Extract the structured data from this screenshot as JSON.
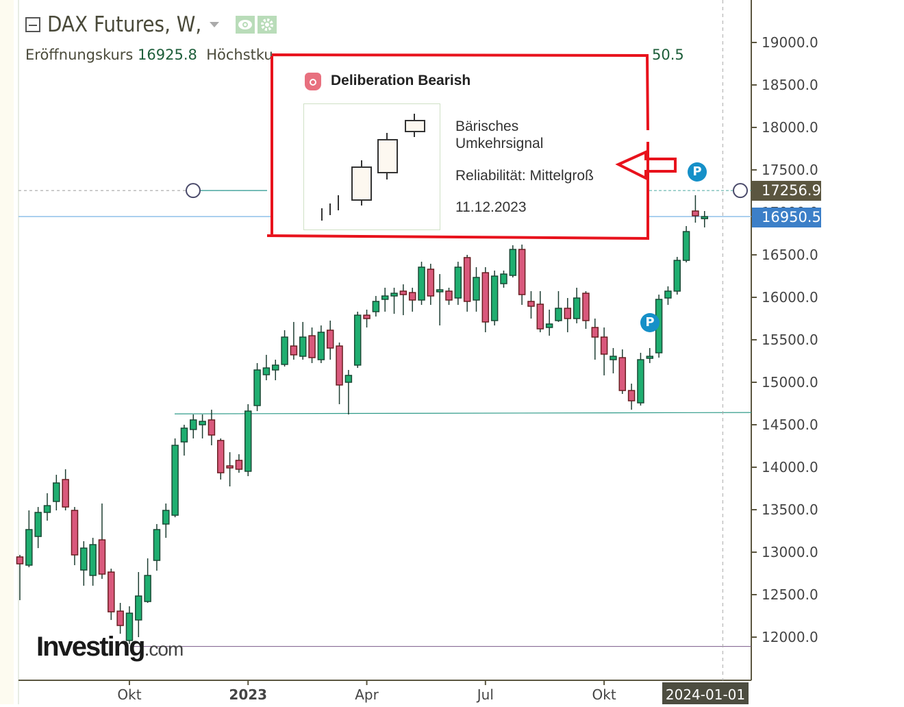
{
  "header": {
    "title": "DAX Futures, W,",
    "icons": [
      "collapse-icon",
      "caret-down-icon",
      "eye-icon",
      "gear-icon"
    ]
  },
  "legend": {
    "open_label": "Eröffnungskurs",
    "open_value": "16925.8",
    "high_label": "Höchstku",
    "tail_fragment": "50.5"
  },
  "tooltip": {
    "title": "Deliberation Bearish",
    "line1": "Bärisches",
    "line2": "Umkehrsignal",
    "reliability": "Reliabilität: Mittelgroß",
    "date": "11.12.2023",
    "icon": "bear-icon"
  },
  "markers": [
    {
      "label": "P"
    },
    {
      "label": "P"
    }
  ],
  "badges": {
    "line_price": "17256.9",
    "last_price": "16950.5",
    "crosshair_date": "2024-01-01"
  },
  "logo": {
    "main": "Investing",
    "suffix": ".com"
  },
  "colors": {
    "up": "#1fae70",
    "down": "#d9597c",
    "up_border": "#1b4a36",
    "down_border": "#6a1f22",
    "wick": "#1d3d31",
    "last_badge": "#3c7fc8",
    "line_badge": "#5b5640",
    "annotation": "#e8121c"
  },
  "chart_data": {
    "type": "candlestick",
    "title": "DAX Futures, W,",
    "interval": "weekly",
    "ylim": [
      11550,
      19450
    ],
    "yticks": [
      "19000.0",
      "18500.0",
      "18000.0",
      "17500.0",
      "17000.0",
      "16500.0",
      "16000.0",
      "15500.0",
      "15000.0",
      "14500.0",
      "14000.0",
      "13500.0",
      "13000.0",
      "12500.0",
      "12000.0"
    ],
    "xticks": [
      {
        "label": "Okt",
        "date": "2022-10-03"
      },
      {
        "label": "2023",
        "date": "2023-01-02",
        "bold": true
      },
      {
        "label": "Apr",
        "date": "2023-04-03"
      },
      {
        "label": "Jul",
        "date": "2023-07-03"
      },
      {
        "label": "Okt",
        "date": "2023-10-02"
      }
    ],
    "hlines": [
      {
        "price": 17256.9,
        "style": "dashed"
      },
      {
        "price": 16950.5,
        "style": "solid-blue"
      },
      {
        "price": 14620,
        "style": "trendline"
      },
      {
        "price": 11890,
        "style": "solid-purple"
      }
    ],
    "crosshair_date": "2024-01-01",
    "markers": [
      {
        "date": "2023-12-04",
        "label": "P"
      },
      {
        "date": "2023-11-13",
        "label": "P"
      }
    ],
    "candles": {
      "fields": [
        "date",
        "open",
        "high",
        "low",
        "close"
      ],
      "rows": [
        [
          "2022-07-11",
          12944,
          12968,
          12435,
          12863
        ],
        [
          "2022-07-18",
          12847,
          13492,
          12823,
          13266
        ],
        [
          "2022-07-25",
          13185,
          13532,
          13048,
          13468
        ],
        [
          "2022-08-01",
          13468,
          13694,
          13371,
          13548
        ],
        [
          "2022-08-08",
          13597,
          13911,
          13492,
          13815
        ],
        [
          "2022-08-15",
          13855,
          13976,
          13492,
          13532
        ],
        [
          "2022-08-22",
          13492,
          13532,
          12847,
          12968
        ],
        [
          "2022-08-29",
          12790,
          13129,
          12605,
          13048
        ],
        [
          "2022-09-05",
          12726,
          13169,
          12605,
          13089
        ],
        [
          "2022-09-12",
          13145,
          13573,
          12686,
          12742
        ],
        [
          "2022-09-19",
          12766,
          12806,
          12202,
          12298
        ],
        [
          "2022-09-26",
          12306,
          12403,
          12040,
          12137
        ],
        [
          "2022-10-03",
          11960,
          12363,
          11919,
          12282
        ],
        [
          "2022-10-10",
          12202,
          12766,
          12000,
          12484
        ],
        [
          "2022-10-17",
          12419,
          12927,
          12403,
          12726
        ],
        [
          "2022-10-24",
          12903,
          13331,
          12782,
          13266
        ],
        [
          "2022-10-31",
          13331,
          13573,
          13169,
          13492
        ],
        [
          "2022-11-07",
          13435,
          14339,
          13411,
          14258
        ],
        [
          "2022-11-14",
          14298,
          14500,
          14137,
          14460
        ],
        [
          "2022-11-21",
          14444,
          14621,
          14339,
          14557
        ],
        [
          "2022-11-28",
          14500,
          14621,
          14339,
          14540
        ],
        [
          "2022-12-05",
          14557,
          14677,
          14258,
          14379
        ],
        [
          "2022-12-12",
          14315,
          14339,
          13855,
          13935
        ],
        [
          "2022-12-19",
          14016,
          14177,
          13774,
          13992
        ],
        [
          "2022-12-26",
          14081,
          14153,
          13935,
          13976
        ],
        [
          "2023-01-02",
          13952,
          14742,
          13895,
          14661
        ],
        [
          "2023-01-09",
          14726,
          15226,
          14661,
          15145
        ],
        [
          "2023-01-16",
          15089,
          15323,
          15024,
          15169
        ],
        [
          "2023-01-23",
          15145,
          15266,
          15024,
          15202
        ],
        [
          "2023-01-30",
          15210,
          15613,
          15185,
          15532
        ],
        [
          "2023-02-06",
          15427,
          15710,
          15266,
          15323
        ],
        [
          "2023-02-13",
          15306,
          15710,
          15266,
          15532
        ],
        [
          "2023-02-20",
          15548,
          15645,
          15226,
          15290
        ],
        [
          "2023-02-27",
          15266,
          15669,
          15226,
          15589
        ],
        [
          "2023-03-06",
          15613,
          15726,
          15266,
          15403
        ],
        [
          "2023-03-13",
          15427,
          15468,
          14742,
          14968
        ],
        [
          "2023-03-20",
          15000,
          15145,
          14621,
          15081
        ],
        [
          "2023-03-27",
          15202,
          15831,
          15169,
          15790
        ],
        [
          "2023-04-03",
          15790,
          15855,
          15645,
          15750
        ],
        [
          "2023-04-10",
          15831,
          16016,
          15774,
          15952
        ],
        [
          "2023-04-17",
          15976,
          16113,
          15831,
          16016
        ],
        [
          "2023-04-24",
          16016,
          16113,
          15806,
          16048
        ],
        [
          "2023-05-01",
          16073,
          16153,
          15790,
          16032
        ],
        [
          "2023-05-08",
          16056,
          16113,
          15831,
          15968
        ],
        [
          "2023-05-15",
          15968,
          16419,
          15911,
          16355
        ],
        [
          "2023-05-22",
          16331,
          16395,
          15911,
          16016
        ],
        [
          "2023-05-29",
          16073,
          16274,
          15669,
          16089
        ],
        [
          "2023-06-05",
          16073,
          16113,
          15911,
          15968
        ],
        [
          "2023-06-12",
          15992,
          16419,
          15911,
          16355
        ],
        [
          "2023-06-19",
          16468,
          16500,
          15831,
          15952
        ],
        [
          "2023-06-26",
          15968,
          16355,
          15831,
          16234
        ],
        [
          "2023-07-03",
          16290,
          16355,
          15589,
          15710
        ],
        [
          "2023-07-10",
          15726,
          16315,
          15669,
          16250
        ],
        [
          "2023-07-17",
          16161,
          16315,
          16113,
          16274
        ],
        [
          "2023-07-24",
          16258,
          16613,
          16234,
          16564
        ],
        [
          "2023-07-31",
          16564,
          16621,
          15911,
          16032
        ],
        [
          "2023-08-07",
          15952,
          16073,
          15750,
          15895
        ],
        [
          "2023-08-14",
          15919,
          16073,
          15589,
          15629
        ],
        [
          "2023-08-21",
          15645,
          15855,
          15548,
          15686
        ],
        [
          "2023-08-28",
          15726,
          16073,
          15710,
          15871
        ],
        [
          "2023-09-04",
          15871,
          15992,
          15589,
          15750
        ],
        [
          "2023-09-11",
          15750,
          16113,
          15694,
          15992
        ],
        [
          "2023-09-18",
          16048,
          16073,
          15629,
          15726
        ],
        [
          "2023-09-25",
          15645,
          15750,
          15266,
          15532
        ],
        [
          "2023-10-02",
          15532,
          15645,
          15081,
          15331
        ],
        [
          "2023-10-09",
          15266,
          15403,
          15105,
          15306
        ],
        [
          "2023-10-16",
          15290,
          15387,
          14863,
          14903
        ],
        [
          "2023-10-23",
          14903,
          14984,
          14677,
          14782
        ],
        [
          "2023-10-30",
          14758,
          15347,
          14726,
          15266
        ],
        [
          "2023-11-06",
          15282,
          15403,
          15226,
          15306
        ],
        [
          "2023-11-13",
          15347,
          16032,
          15290,
          15976
        ],
        [
          "2023-11-20",
          15992,
          16129,
          15911,
          16073
        ],
        [
          "2023-11-27",
          16073,
          16476,
          16032,
          16435
        ],
        [
          "2023-12-04",
          16435,
          16839,
          16411,
          16774
        ],
        [
          "2023-12-11",
          17016,
          17202,
          16879,
          16960
        ],
        [
          "2023-12-18",
          16925.8,
          17016,
          16823,
          16950.5
        ]
      ]
    }
  }
}
